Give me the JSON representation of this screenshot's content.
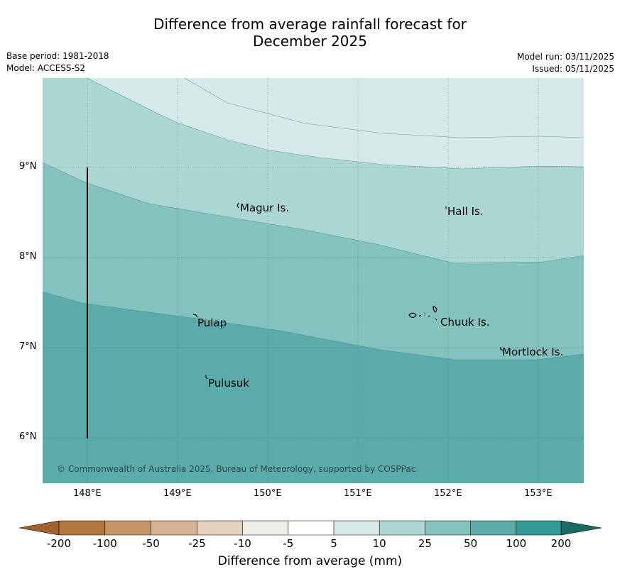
{
  "title_line1": "Difference from average rainfall forecast for",
  "title_line2": "December 2025",
  "meta": {
    "base_period": "Base period: 1981-2018",
    "model": "Model: ACCESS-S2",
    "model_run": "Model run: 03/11/2025",
    "issued": "Issued: 05/11/2025"
  },
  "map": {
    "lat_labels": [
      "9°N",
      "8°N",
      "7°N",
      "6°N"
    ],
    "lon_labels": [
      "148°E",
      "149°E",
      "150°E",
      "151°E",
      "152°E",
      "153°E"
    ],
    "places": {
      "magur": "Magur Is.",
      "hall": "Hall Is.",
      "pulap": "Pulap",
      "chuuk": "Chuuk Is.",
      "mortlock": "Mortlock Is.",
      "pulusuk": "Pulusuk"
    },
    "copyright": "© Commonwealth of Australia 2025, Bureau of Meteorology, supported by COSPPac",
    "colors": {
      "c5_10": "#d5e9e8",
      "c10_25": "#acd6d4",
      "c25_50": "#84c2c0",
      "c50_100": "#5babab"
    }
  },
  "colorbar": {
    "label": "Difference from average (mm)",
    "ticks": [
      "-200",
      "-100",
      "-50",
      "-25",
      "-10",
      "-5",
      "5",
      "10",
      "25",
      "50",
      "100",
      "200"
    ],
    "colors": [
      "#a0612a",
      "#b0773f",
      "#c49566",
      "#d5b291",
      "#e4d1bf",
      "#efede7",
      "#ffffff",
      "#d5e9e8",
      "#acd6d4",
      "#84c2c0",
      "#5babab",
      "#339a96",
      "#1c6a64"
    ]
  }
}
